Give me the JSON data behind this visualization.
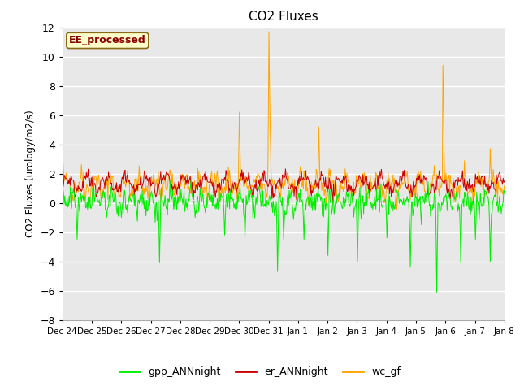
{
  "title": "CO2 Fluxes",
  "ylabel": "CO2 Fluxes (urology/m2/s)",
  "ylim": [
    -8,
    12
  ],
  "yticks": [
    -8,
    -6,
    -4,
    -2,
    0,
    2,
    4,
    6,
    8,
    10,
    12
  ],
  "bg_color": "#e8e8e8",
  "annotation_text": "EE_processed",
  "annotation_color": "#8b0000",
  "annotation_bg": "#ffffcc",
  "annotation_border": "#8b6914",
  "series": {
    "gpp_ANNnight": {
      "color": "#00ee00",
      "lw": 0.7
    },
    "er_ANNnight": {
      "color": "#cc0000",
      "lw": 0.7
    },
    "wc_gf": {
      "color": "#ffa500",
      "lw": 0.7
    }
  },
  "legend_colors": {
    "gpp_ANNnight": "#00ee00",
    "er_ANNnight": "#cc0000",
    "wc_gf": "#ffa500"
  },
  "n_points": 720,
  "end_day": 15,
  "random_seed": 42,
  "x_tick_labels": [
    "Dec 24",
    "Dec 25",
    "Dec 26",
    "Dec 27",
    "Dec 28",
    "Dec 29",
    "Dec 30",
    "Dec 31",
    "Jan 1",
    "Jan 2",
    "Jan 3",
    "Jan 4",
    "Jan 5",
    "Jan 6",
    "Jan 7",
    "Jan 8"
  ],
  "grid_color": "#ffffff",
  "grid_lw": 1.0
}
